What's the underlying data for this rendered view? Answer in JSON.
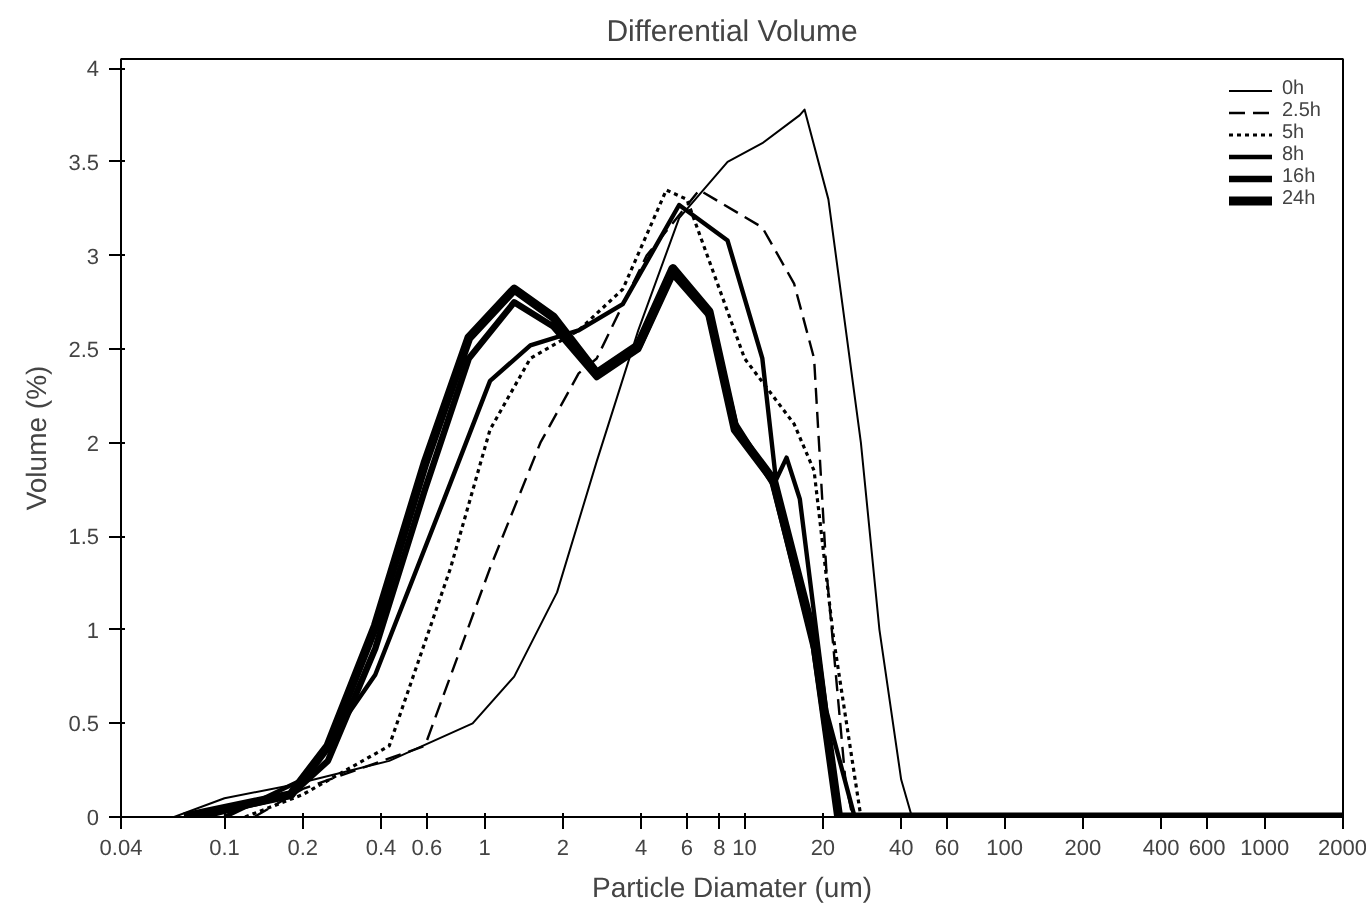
{
  "chart_data": {
    "type": "line",
    "title": "Differential Volume",
    "xlabel": "Particle Diamater (um)",
    "ylabel": "Volume (%)",
    "log": "x",
    "grid": false,
    "legend": "top right",
    "xlim": [
      0.04,
      2000
    ],
    "ylim": [
      0,
      4.05
    ],
    "xticks": [
      0.04,
      0.1,
      0.2,
      0.4,
      0.6,
      1,
      2,
      4,
      6,
      8,
      10,
      20,
      40,
      60,
      100,
      200,
      400,
      600,
      1000,
      2000
    ],
    "yticks": [
      0,
      0.5,
      1,
      1.5,
      2,
      2.5,
      3,
      3.5,
      4
    ],
    "series": [
      {
        "name": "0h",
        "color": "#000000",
        "line_style": "solid",
        "x": [
          0.064,
          0.1,
          0.18,
          0.43,
          0.9,
          1.3,
          1.9,
          2.7,
          3.9,
          5.6,
          8.6,
          11.7,
          16.3,
          17,
          21,
          28,
          33,
          40,
          44,
          2000
        ],
        "values": [
          0,
          0.1,
          0.17,
          0.3,
          0.5,
          0.75,
          1.2,
          1.9,
          2.6,
          3.2,
          3.5,
          3.6,
          3.75,
          3.78,
          3.3,
          2.0,
          1.0,
          0.2,
          0,
          0
        ]
      },
      {
        "name": "2.5h",
        "color": "#000000",
        "line_style": "dashed",
        "x": [
          0.13,
          0.2,
          0.59,
          1.05,
          1.64,
          2.3,
          2.7,
          4.2,
          6.7,
          11.7,
          15.5,
          18.5,
          20.6,
          24.4,
          26,
          2000
        ],
        "values": [
          0,
          0.15,
          0.38,
          1.33,
          2.0,
          2.37,
          2.45,
          3.0,
          3.35,
          3.15,
          2.85,
          2.45,
          1.33,
          0.2,
          0,
          0
        ]
      },
      {
        "name": "5h",
        "color": "#000000",
        "line_style": "dotted",
        "x": [
          0.12,
          0.2,
          0.43,
          0.74,
          1.05,
          1.5,
          2.3,
          3.4,
          5.0,
          6.0,
          10,
          15.5,
          18.5,
          22,
          28,
          2000
        ],
        "values": [
          0,
          0.12,
          0.38,
          1.33,
          2.07,
          2.45,
          2.6,
          2.82,
          3.35,
          3.3,
          2.45,
          2.1,
          1.85,
          0.95,
          0,
          0
        ]
      },
      {
        "name": "8h",
        "color": "#000000",
        "line_style": "solid",
        "x": [
          0.1,
          0.2,
          0.38,
          0.7,
          1.05,
          1.5,
          2.3,
          3.4,
          5.6,
          8.6,
          11.7,
          13.2,
          14.5,
          16.3,
          20.6,
          26.5,
          2000
        ],
        "values": [
          0,
          0.2,
          0.76,
          1.7,
          2.33,
          2.52,
          2.6,
          2.74,
          3.27,
          3.08,
          2.45,
          1.8,
          1.92,
          1.7,
          0.57,
          0,
          0
        ]
      },
      {
        "name": "16h",
        "color": "#000000",
        "line_style": "solid",
        "x": [
          0.08,
          0.18,
          0.25,
          0.38,
          0.59,
          0.87,
          1.3,
          1.84,
          2.7,
          3.9,
          5.3,
          7.3,
          9.2,
          12.9,
          18.5,
          23,
          2000
        ],
        "values": [
          0,
          0.12,
          0.3,
          0.9,
          1.75,
          2.45,
          2.75,
          2.62,
          2.35,
          2.5,
          2.9,
          2.68,
          2.1,
          1.78,
          0.9,
          0,
          0
        ]
      },
      {
        "name": "24h",
        "color": "#000000",
        "line_style": "solid",
        "x": [
          0.07,
          0.18,
          0.25,
          0.38,
          0.59,
          0.87,
          1.3,
          1.84,
          2.7,
          3.9,
          5.3,
          7.3,
          9.2,
          12.9,
          18.5,
          23,
          2000
        ],
        "values": [
          0,
          0.12,
          0.38,
          1.02,
          1.89,
          2.56,
          2.82,
          2.67,
          2.37,
          2.52,
          2.93,
          2.7,
          2.07,
          1.8,
          0.95,
          0,
          0
        ]
      }
    ]
  }
}
